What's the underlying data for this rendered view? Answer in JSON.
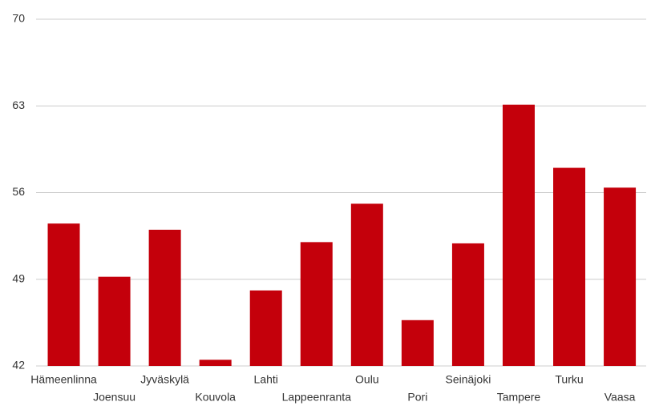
{
  "chart_data": {
    "type": "bar",
    "categories": [
      "Hämeenlinna",
      "Joensuu",
      "Jyväskylä",
      "Kouvola",
      "Lahti",
      "Lappeenranta",
      "Oulu",
      "Pori",
      "Seinäjoki",
      "Tampere",
      "Turku",
      "Vaasa"
    ],
    "values": [
      53.5,
      49.2,
      53.0,
      42.5,
      48.1,
      52.0,
      55.1,
      45.7,
      51.9,
      63.1,
      58.0,
      56.4
    ],
    "color": "#c4000b",
    "ylim": [
      42,
      70
    ],
    "yticks": [
      42,
      49,
      56,
      63,
      70
    ],
    "grid": true
  }
}
